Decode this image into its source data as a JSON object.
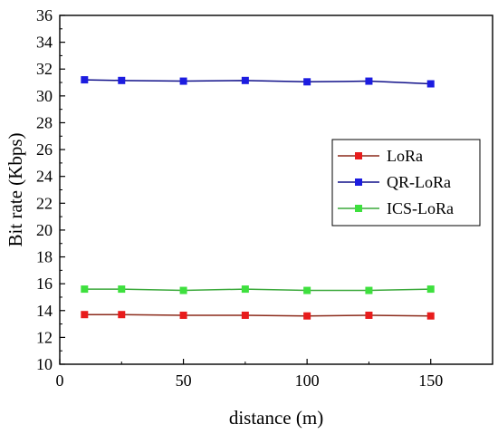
{
  "chart_data": {
    "type": "line",
    "xlabel": "distance (m)",
    "ylabel": "Bit rate (Kbps)",
    "xlim": [
      0,
      175
    ],
    "ylim": [
      10,
      36
    ],
    "xticks": [
      0,
      50,
      100,
      150
    ],
    "yticks": [
      10,
      12,
      14,
      16,
      18,
      20,
      22,
      24,
      26,
      28,
      30,
      32,
      34,
      36
    ],
    "grid": false,
    "legend_position": "right-middle",
    "x": [
      10,
      25,
      50,
      75,
      100,
      125,
      150
    ],
    "series": [
      {
        "name": "LoRa",
        "color": "#e81c1c",
        "line_color": "#8b2a1a",
        "marker": "square",
        "values": [
          13.7,
          13.7,
          13.65,
          13.65,
          13.6,
          13.65,
          13.6
        ]
      },
      {
        "name": "QR-LoRa",
        "color": "#1c1ce0",
        "line_color": "#10108a",
        "marker": "square",
        "values": [
          31.2,
          31.15,
          31.1,
          31.15,
          31.05,
          31.1,
          30.9
        ]
      },
      {
        "name": "ICS-LoRa",
        "color": "#3ee03e",
        "line_color": "#3aa83a",
        "marker": "square",
        "values": [
          15.6,
          15.6,
          15.5,
          15.6,
          15.5,
          15.5,
          15.6
        ]
      }
    ]
  }
}
